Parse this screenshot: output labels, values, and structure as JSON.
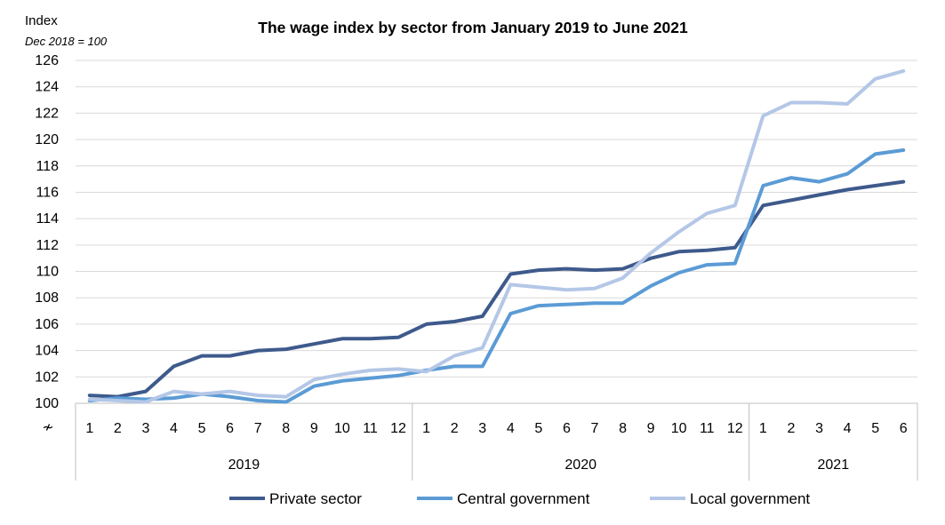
{
  "chart_data": {
    "type": "line",
    "title": "The wage index by sector from January 2019 to June 2021",
    "ylabel": "Index",
    "ylabel_sub": "Dec 2018 = 100",
    "ylim": [
      100,
      126
    ],
    "yticks": [
      100,
      102,
      104,
      106,
      108,
      110,
      112,
      114,
      116,
      118,
      120,
      122,
      124,
      126
    ],
    "axis_break_symbol": "≁",
    "months": [
      "1",
      "2",
      "3",
      "4",
      "5",
      "6",
      "7",
      "8",
      "9",
      "10",
      "11",
      "12",
      "1",
      "2",
      "3",
      "4",
      "5",
      "6",
      "7",
      "8",
      "9",
      "10",
      "11",
      "12",
      "1",
      "2",
      "3",
      "4",
      "5",
      "6"
    ],
    "years": [
      {
        "label": "2019",
        "count": 12
      },
      {
        "label": "2020",
        "count": 12
      },
      {
        "label": "2021",
        "count": 6
      }
    ],
    "grid": true,
    "legend_position": "bottom",
    "series": [
      {
        "name": "Private sector",
        "color": "#3e5a8c",
        "values": [
          100.6,
          100.5,
          100.9,
          102.8,
          103.6,
          103.6,
          104.0,
          104.1,
          104.5,
          104.9,
          104.9,
          105.0,
          106.0,
          106.2,
          106.6,
          109.8,
          110.1,
          110.2,
          110.1,
          110.2,
          111.0,
          111.5,
          111.6,
          111.8,
          115.0,
          115.4,
          115.8,
          116.2,
          116.5,
          116.8
        ]
      },
      {
        "name": "Central government",
        "color": "#5b9bd5",
        "values": [
          100.2,
          100.4,
          100.3,
          100.4,
          100.7,
          100.5,
          100.2,
          100.1,
          101.3,
          101.7,
          101.9,
          102.1,
          102.5,
          102.8,
          102.8,
          106.8,
          107.4,
          107.5,
          107.6,
          107.6,
          108.9,
          109.9,
          110.5,
          110.6,
          116.5,
          117.1,
          116.8,
          117.4,
          118.9,
          119.2
        ]
      },
      {
        "name": "Local government",
        "color": "#b4c7e7",
        "values": [
          100.3,
          100.2,
          100.1,
          100.9,
          100.7,
          100.9,
          100.6,
          100.5,
          101.8,
          102.2,
          102.5,
          102.6,
          102.4,
          103.6,
          104.2,
          109.0,
          108.8,
          108.6,
          108.7,
          109.5,
          111.4,
          113.0,
          114.4,
          115.0,
          121.8,
          122.8,
          122.8,
          122.7,
          124.6,
          125.2
        ]
      }
    ]
  }
}
